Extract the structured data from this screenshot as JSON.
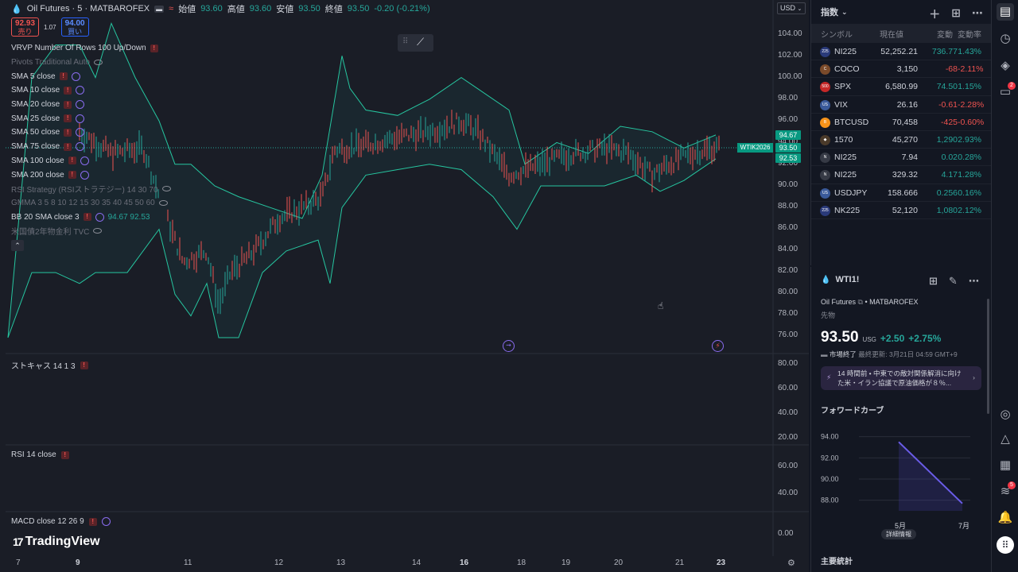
{
  "header": {
    "symbol": "Oil Futures · 5 · MATBAROFEX",
    "open_label": "始値",
    "open": "93.60",
    "high_label": "高値",
    "high": "93.60",
    "low_label": "安値",
    "low": "93.50",
    "close_label": "終値",
    "close": "93.50",
    "change": "-0.20 (-0.21%)",
    "currency": "USD"
  },
  "trade": {
    "sell_price": "92.93",
    "sell_label": "売り",
    "spread": "1.07",
    "buy_price": "94.00",
    "buy_label": "買い"
  },
  "indicators": [
    {
      "label": "VRVP Number Of Rows 100 Up/Down",
      "dim": false,
      "warn": true,
      "cyc": false,
      "eye": false,
      "values": ""
    },
    {
      "label": "Pivots Traditional Auto",
      "dim": true,
      "warn": false,
      "cyc": false,
      "eye": true,
      "values": ""
    },
    {
      "label": "SMA 5 close",
      "dim": false,
      "warn": true,
      "cyc": true,
      "eye": false,
      "values": ""
    },
    {
      "label": "SMA 10 close",
      "dim": false,
      "warn": true,
      "cyc": true,
      "eye": false,
      "values": ""
    },
    {
      "label": "SMA 20 close",
      "dim": false,
      "warn": true,
      "cyc": true,
      "eye": false,
      "values": ""
    },
    {
      "label": "SMA 25 close",
      "dim": false,
      "warn": true,
      "cyc": true,
      "eye": false,
      "values": ""
    },
    {
      "label": "SMA 50 close",
      "dim": false,
      "warn": true,
      "cyc": true,
      "eye": false,
      "values": ""
    },
    {
      "label": "SMA 75 close",
      "dim": false,
      "warn": true,
      "cyc": true,
      "eye": false,
      "values": ""
    },
    {
      "label": "SMA 100 close",
      "dim": false,
      "warn": true,
      "cyc": true,
      "eye": false,
      "values": ""
    },
    {
      "label": "SMA 200 close",
      "dim": false,
      "warn": true,
      "cyc": true,
      "eye": false,
      "values": ""
    },
    {
      "label": "RSI Strategy (RSIストラテジー) 14 30 70",
      "dim": true,
      "warn": false,
      "cyc": false,
      "eye": true,
      "values": ""
    },
    {
      "label": "GMMA 3 5 8 10 12 15 30 35 40 45 50 60",
      "dim": true,
      "warn": false,
      "cyc": false,
      "eye": true,
      "values": ""
    },
    {
      "label": "BB 20 SMA close 3",
      "dim": false,
      "warn": true,
      "cyc": true,
      "eye": false,
      "values": "94.67  92.53"
    },
    {
      "label": "米国債2年物金利   TVC",
      "dim": true,
      "warn": false,
      "cyc": false,
      "eye": true,
      "values": ""
    }
  ],
  "main_yaxis": [
    "104.00",
    "102.00",
    "100.00",
    "98.00",
    "96.00",
    "94.00",
    "92.00",
    "90.00",
    "88.00",
    "86.00",
    "84.00",
    "82.00",
    "80.00",
    "78.00",
    "76.00"
  ],
  "price_tags": {
    "upper": "94.67",
    "last": "93.50",
    "lower": "92.53",
    "symbol": "WTIK2026"
  },
  "stoch": {
    "label": "ストキャス 14 1 3",
    "yaxis": [
      "80.00",
      "60.00",
      "40.00",
      "20.00"
    ]
  },
  "rsi": {
    "label": "RSI 14 close",
    "yaxis": [
      "60.00",
      "40.00"
    ]
  },
  "macd": {
    "label": "MACD close 12 26 9",
    "yaxis": [
      "0.00"
    ]
  },
  "xaxis": [
    {
      "t": "7",
      "bold": false
    },
    {
      "t": "9",
      "bold": true
    },
    {
      "t": "11",
      "bold": false
    },
    {
      "t": "12",
      "bold": false
    },
    {
      "t": "13",
      "bold": false
    },
    {
      "t": "14",
      "bold": false
    },
    {
      "t": "16",
      "bold": true
    },
    {
      "t": "18",
      "bold": false
    },
    {
      "t": "19",
      "bold": false
    },
    {
      "t": "20",
      "bold": false
    },
    {
      "t": "21",
      "bold": false
    },
    {
      "t": "23",
      "bold": true
    }
  ],
  "logo": "TradingView",
  "watchlist": {
    "title": "指数",
    "columns": {
      "symbol": "シンボル",
      "last": "現在値",
      "change": "変動",
      "pct": "変動率"
    },
    "rows": [
      {
        "icon": "225",
        "iconColor": "#2a3a7a",
        "symbol": "NI225",
        "last": "52,252.21",
        "change": "736.77",
        "pct": "1.43%",
        "dir": "up"
      },
      {
        "icon": "C",
        "iconColor": "#7a4a2a",
        "symbol": "COCO",
        "last": "3,150",
        "change": "-68",
        "pct": "-2.11%",
        "dir": "dn"
      },
      {
        "icon": "500",
        "iconColor": "#c62828",
        "symbol": "SPX",
        "last": "6,580.99",
        "change": "74.50",
        "pct": "1.15%",
        "dir": "up"
      },
      {
        "icon": "US",
        "iconColor": "#3a5a9a",
        "symbol": "VIX",
        "last": "26.16",
        "change": "-0.61",
        "pct": "-2.28%",
        "dir": "dn"
      },
      {
        "icon": "B",
        "iconColor": "#f7931a",
        "symbol": "BTCUSD",
        "last": "70,458",
        "change": "-425",
        "pct": "-0.60%",
        "dir": "dn"
      },
      {
        "icon": "◆",
        "iconColor": "#4a3a2a",
        "symbol": "1570",
        "last": "45,270",
        "change": "1,290",
        "pct": "2.93%",
        "dir": "up"
      },
      {
        "icon": "N",
        "iconColor": "#363a45",
        "symbol": "NI225",
        "last": "7.94",
        "change": "0.02",
        "pct": "0.28%",
        "dir": "up"
      },
      {
        "icon": "N",
        "iconColor": "#363a45",
        "symbol": "NI225",
        "last": "329.32",
        "change": "4.17",
        "pct": "1.28%",
        "dir": "up"
      },
      {
        "icon": "US",
        "iconColor": "#3a5a9a",
        "symbol": "USDJPY",
        "last": "158.666",
        "change": "0.256",
        "pct": "0.16%",
        "dir": "up"
      },
      {
        "icon": "225",
        "iconColor": "#2a3a7a",
        "symbol": "NK225",
        "last": "52,120",
        "change": "1,080",
        "pct": "2.12%",
        "dir": "up"
      }
    ]
  },
  "details": {
    "symbol": "WTI1!",
    "name": "Oil Futures",
    "exchange": "MATBAROFEX",
    "type": "先物",
    "price": "93.50",
    "currency": "USG",
    "change": "+2.50",
    "change_pct": "+2.75%",
    "status": "市場終了",
    "updated": "最終更新: 3月21日 04:59 GMT+9",
    "news": "14 時間前 • 中東での敵対関係解消に向けた米・イラン協議で原油価格が８％...",
    "forward_title": "フォワードカーブ",
    "forward_curve": {
      "type": "line",
      "x": [
        "5月",
        "7月"
      ],
      "values": [
        93.5,
        87.7
      ],
      "ylim": [
        87,
        94.5
      ],
      "yticks": [
        "94.00",
        "92.00",
        "90.00",
        "88.00"
      ]
    },
    "more_button": "詳細情報",
    "stats_title": "主要統計"
  },
  "colors": {
    "up": "#26a69a",
    "down": "#ef5350",
    "band": "#26c6a0",
    "accent": "#2962ff"
  }
}
